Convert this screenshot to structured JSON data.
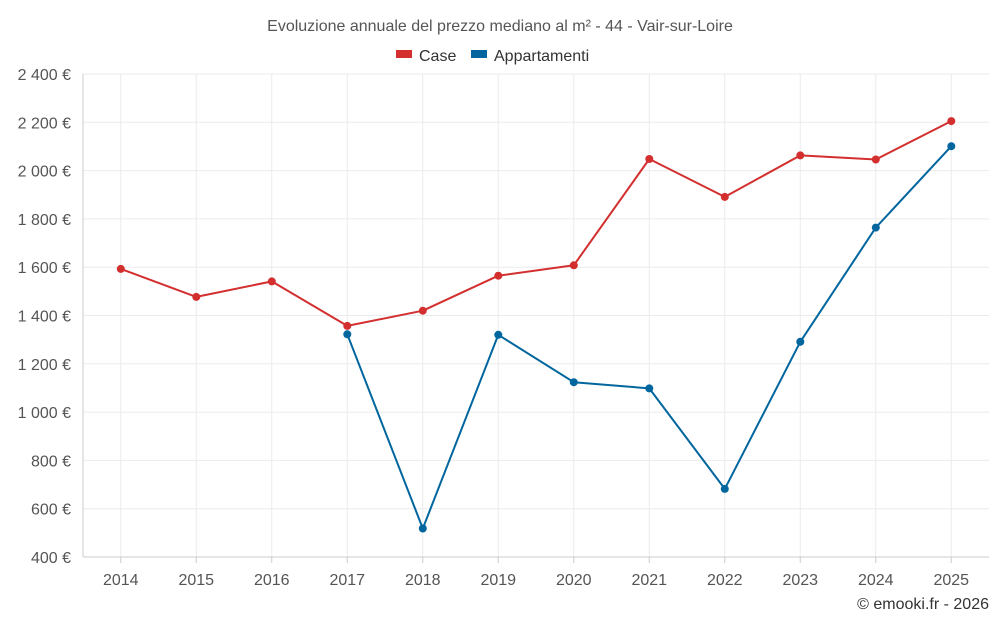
{
  "chart_data": {
    "type": "line",
    "title": "Evoluzione annuale del prezzo mediano al m² - 44 - Vair-sur-Loire",
    "xlabel": "",
    "ylabel": "",
    "categories": [
      "2014",
      "2015",
      "2016",
      "2017",
      "2018",
      "2019",
      "2020",
      "2021",
      "2022",
      "2023",
      "2024",
      "2025"
    ],
    "ylim": [
      400,
      2400
    ],
    "yticks": [
      400,
      600,
      800,
      1000,
      1200,
      1400,
      1600,
      1800,
      2000,
      2200,
      2400
    ],
    "ytick_labels": [
      "400 €",
      "600 €",
      "800 €",
      "1 000 €",
      "1 200 €",
      "1 400 €",
      "1 600 €",
      "1 800 €",
      "2 000 €",
      "2 200 €",
      "2 400 €"
    ],
    "grid": true,
    "legend_position": "top-center",
    "series": [
      {
        "name": "Case",
        "color": "#d32f2f",
        "values": [
          1593,
          1477,
          1541,
          1357,
          1420,
          1565,
          1608,
          2048,
          1891,
          2063,
          2046,
          2205
        ]
      },
      {
        "name": "Appartamenti",
        "color": "#01669e",
        "values": [
          null,
          null,
          null,
          1322,
          518,
          1320,
          1124,
          1098,
          682,
          1291,
          1764,
          2101
        ]
      }
    ]
  },
  "credit": "© emooki.fr - 2026"
}
